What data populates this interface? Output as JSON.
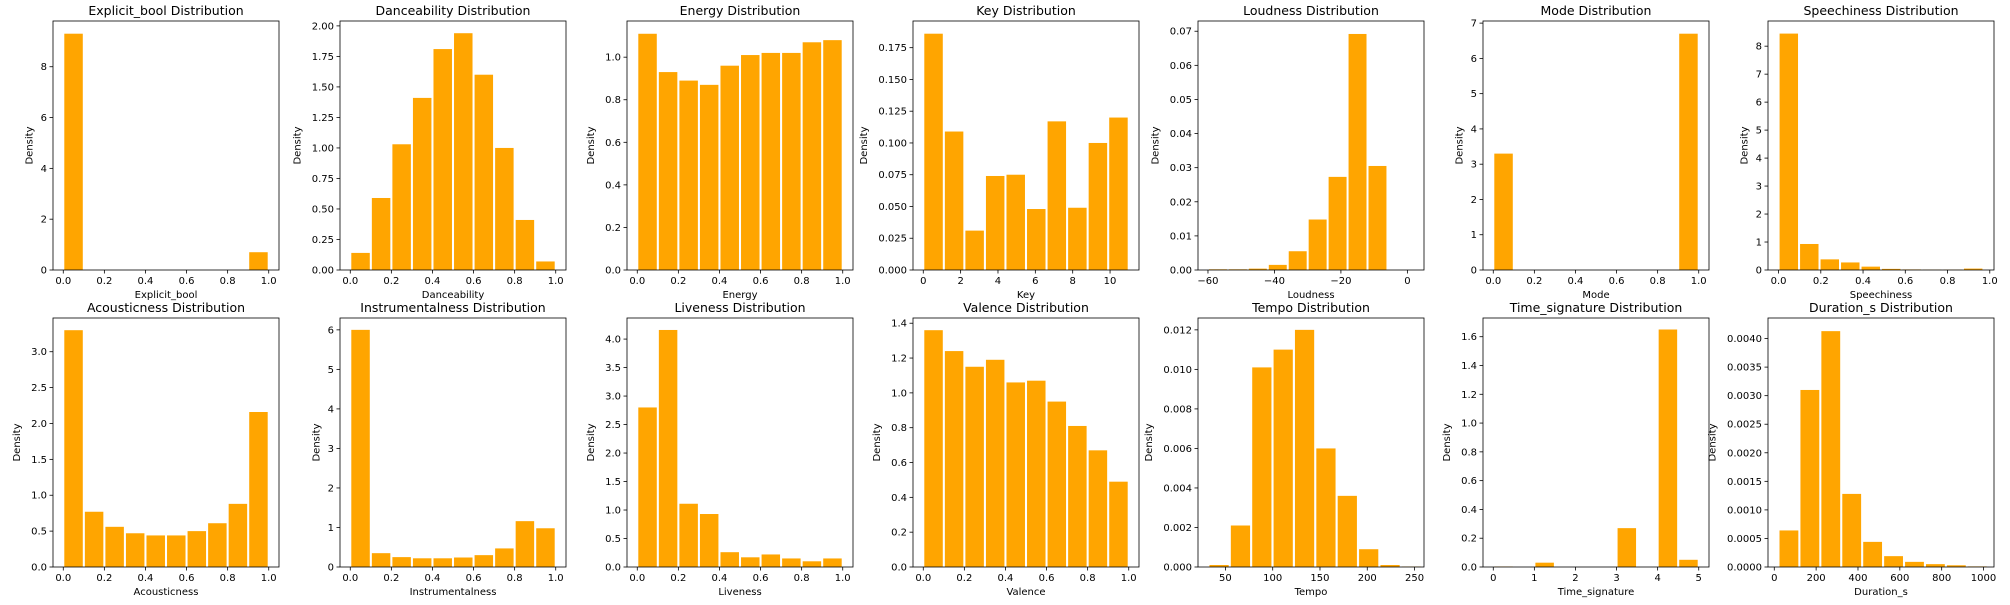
{
  "figure": {
    "bar_color": "#FFA500",
    "axis_color": "#000000",
    "background": "#ffffff",
    "ylabel": "Density"
  },
  "chart_data": [
    {
      "type": "bar",
      "title": "Explicit_bool Distribution",
      "xlabel": "Explicit_bool",
      "ylabel": "Density",
      "xlim": [
        -0.05,
        1.05
      ],
      "ylim": [
        0,
        9.8
      ],
      "xticks": [
        0,
        0.2,
        0.4,
        0.6,
        0.8,
        1.0
      ],
      "xticklabels": [
        "0.0",
        "0.2",
        "0.4",
        "0.6",
        "0.8",
        "1.0"
      ],
      "yticks": [
        0,
        2,
        4,
        6,
        8
      ],
      "yticklabels": [
        "0",
        "2",
        "4",
        "6",
        "8"
      ],
      "bins": [
        [
          0,
          0.1,
          9.3
        ],
        [
          0.9,
          1.0,
          0.7
        ]
      ]
    },
    {
      "type": "bar",
      "title": "Danceability Distribution",
      "xlabel": "Danceability",
      "ylabel": "Density",
      "xlim": [
        -0.05,
        1.05
      ],
      "ylim": [
        0,
        2.04
      ],
      "xticks": [
        0,
        0.2,
        0.4,
        0.6,
        0.8,
        1.0
      ],
      "xticklabels": [
        "0.0",
        "0.2",
        "0.4",
        "0.6",
        "0.8",
        "1.0"
      ],
      "yticks": [
        0,
        0.25,
        0.5,
        0.75,
        1.0,
        1.25,
        1.5,
        1.75,
        2.0
      ],
      "yticklabels": [
        "0.00",
        "0.25",
        "0.50",
        "0.75",
        "1.00",
        "1.25",
        "1.50",
        "1.75",
        "2.00"
      ],
      "bins": [
        [
          0.0,
          0.1,
          0.14
        ],
        [
          0.1,
          0.2,
          0.59
        ],
        [
          0.2,
          0.3,
          1.03
        ],
        [
          0.3,
          0.4,
          1.41
        ],
        [
          0.4,
          0.5,
          1.81
        ],
        [
          0.5,
          0.6,
          1.94
        ],
        [
          0.6,
          0.7,
          1.6
        ],
        [
          0.7,
          0.8,
          1.0
        ],
        [
          0.8,
          0.9,
          0.41
        ],
        [
          0.9,
          1.0,
          0.07
        ]
      ]
    },
    {
      "type": "bar",
      "title": "Energy Distribution",
      "xlabel": "Energy",
      "ylabel": "Density",
      "xlim": [
        -0.05,
        1.05
      ],
      "ylim": [
        0,
        1.17
      ],
      "xticks": [
        0,
        0.2,
        0.4,
        0.6,
        0.8,
        1.0
      ],
      "xticklabels": [
        "0.0",
        "0.2",
        "0.4",
        "0.6",
        "0.8",
        "1.0"
      ],
      "yticks": [
        0,
        0.2,
        0.4,
        0.6,
        0.8,
        1.0
      ],
      "yticklabels": [
        "0.0",
        "0.2",
        "0.4",
        "0.6",
        "0.8",
        "1.0"
      ],
      "bins": [
        [
          0.0,
          0.1,
          1.11
        ],
        [
          0.1,
          0.2,
          0.93
        ],
        [
          0.2,
          0.3,
          0.89
        ],
        [
          0.3,
          0.4,
          0.87
        ],
        [
          0.4,
          0.5,
          0.96
        ],
        [
          0.5,
          0.6,
          1.01
        ],
        [
          0.6,
          0.7,
          1.02
        ],
        [
          0.7,
          0.8,
          1.02
        ],
        [
          0.8,
          0.9,
          1.07
        ],
        [
          0.9,
          1.0,
          1.08
        ]
      ]
    },
    {
      "type": "bar",
      "title": "Key Distribution",
      "xlabel": "Key",
      "ylabel": "Density",
      "xlim": [
        -0.55,
        11.55
      ],
      "ylim": [
        0,
        0.196
      ],
      "xticks": [
        0,
        2,
        4,
        6,
        8,
        10
      ],
      "xticklabels": [
        "0",
        "2",
        "4",
        "6",
        "8",
        "10"
      ],
      "yticks": [
        0,
        0.025,
        0.05,
        0.075,
        0.1,
        0.125,
        0.15,
        0.175
      ],
      "yticklabels": [
        "0.000",
        "0.025",
        "0.050",
        "0.075",
        "0.100",
        "0.125",
        "0.150",
        "0.175"
      ],
      "bins": [
        [
          0,
          1.1,
          0.186
        ],
        [
          1.1,
          2.2,
          0.109
        ],
        [
          2.2,
          3.3,
          0.031
        ],
        [
          3.3,
          4.4,
          0.074
        ],
        [
          4.4,
          5.5,
          0.075
        ],
        [
          5.5,
          6.6,
          0.048
        ],
        [
          6.6,
          7.7,
          0.117
        ],
        [
          7.7,
          8.8,
          0.049
        ],
        [
          8.8,
          9.9,
          0.1
        ],
        [
          9.9,
          11.0,
          0.12
        ]
      ]
    },
    {
      "type": "bar",
      "title": "Loudness Distribution",
      "xlabel": "Loudness",
      "ylabel": "Density",
      "xlim": [
        -63,
        5
      ],
      "ylim": [
        0,
        0.073
      ],
      "xticks": [
        -60,
        -40,
        -20,
        0
      ],
      "xticklabels": [
        "−60",
        "−40",
        "−20",
        "0"
      ],
      "yticks": [
        0,
        0.01,
        0.02,
        0.03,
        0.04,
        0.05,
        0.06,
        0.07
      ],
      "yticklabels": [
        "0.00",
        "0.01",
        "0.02",
        "0.03",
        "0.04",
        "0.05",
        "0.06",
        "0.07"
      ],
      "bins": [
        [
          -60,
          -54,
          0.0002
        ],
        [
          -54,
          -48,
          0.0002
        ],
        [
          -48,
          -42,
          0.0004
        ],
        [
          -42,
          -36,
          0.0015
        ],
        [
          -36,
          -30,
          0.0055
        ],
        [
          -30,
          -24,
          0.0148
        ],
        [
          -24,
          -18,
          0.0273
        ],
        [
          -18,
          -12,
          0.0692
        ],
        [
          -12,
          -6,
          0.0305
        ]
      ]
    },
    {
      "type": "bar",
      "title": "Mode Distribution",
      "xlabel": "Mode",
      "ylabel": "Density",
      "xlim": [
        -0.05,
        1.05
      ],
      "ylim": [
        0,
        7.06
      ],
      "xticks": [
        0,
        0.2,
        0.4,
        0.6,
        0.8,
        1.0
      ],
      "xticklabels": [
        "0.0",
        "0.2",
        "0.4",
        "0.6",
        "0.8",
        "1.0"
      ],
      "yticks": [
        0,
        1,
        2,
        3,
        4,
        5,
        6,
        7
      ],
      "yticklabels": [
        "0",
        "1",
        "2",
        "3",
        "4",
        "5",
        "6",
        "7"
      ],
      "bins": [
        [
          0,
          0.1,
          3.3
        ],
        [
          0.9,
          1.0,
          6.7
        ]
      ]
    },
    {
      "type": "bar",
      "title": "Speechiness Distribution",
      "xlabel": "Speechiness",
      "ylabel": "Density",
      "xlim": [
        -0.05,
        1.02
      ],
      "ylim": [
        0,
        8.9
      ],
      "xticks": [
        0,
        0.2,
        0.4,
        0.6,
        0.8,
        1.0
      ],
      "xticklabels": [
        "0.0",
        "0.2",
        "0.4",
        "0.6",
        "0.8",
        "1.0"
      ],
      "yticks": [
        0,
        1,
        2,
        3,
        4,
        5,
        6,
        7,
        8
      ],
      "yticklabels": [
        "0",
        "1",
        "2",
        "3",
        "4",
        "5",
        "6",
        "7",
        "8"
      ],
      "bins": [
        [
          0,
          0.097,
          8.45
        ],
        [
          0.097,
          0.194,
          0.93
        ],
        [
          0.194,
          0.291,
          0.38
        ],
        [
          0.291,
          0.388,
          0.27
        ],
        [
          0.388,
          0.485,
          0.12
        ],
        [
          0.485,
          0.582,
          0.04
        ],
        [
          0.582,
          0.679,
          0.02
        ],
        [
          0.679,
          0.776,
          0.01
        ],
        [
          0.776,
          0.873,
          0.01
        ],
        [
          0.873,
          0.97,
          0.05
        ]
      ]
    },
    {
      "type": "bar",
      "title": "Acousticness Distribution",
      "xlabel": "Acousticness",
      "ylabel": "Density",
      "xlim": [
        -0.05,
        1.05
      ],
      "ylim": [
        0,
        3.47
      ],
      "xticks": [
        0,
        0.2,
        0.4,
        0.6,
        0.8,
        1.0
      ],
      "xticklabels": [
        "0.0",
        "0.2",
        "0.4",
        "0.6",
        "0.8",
        "1.0"
      ],
      "yticks": [
        0,
        0.5,
        1.0,
        1.5,
        2.0,
        2.5,
        3.0
      ],
      "yticklabels": [
        "0.0",
        "0.5",
        "1.0",
        "1.5",
        "2.0",
        "2.5",
        "3.0"
      ],
      "bins": [
        [
          0.0,
          0.1,
          3.3
        ],
        [
          0.1,
          0.2,
          0.77
        ],
        [
          0.2,
          0.3,
          0.56
        ],
        [
          0.3,
          0.4,
          0.47
        ],
        [
          0.4,
          0.5,
          0.44
        ],
        [
          0.5,
          0.6,
          0.44
        ],
        [
          0.6,
          0.7,
          0.5
        ],
        [
          0.7,
          0.8,
          0.61
        ],
        [
          0.8,
          0.9,
          0.88
        ],
        [
          0.9,
          1.0,
          2.16
        ]
      ]
    },
    {
      "type": "bar",
      "title": "Instrumentalness Distribution",
      "xlabel": "Instrumentalness",
      "ylabel": "Density",
      "xlim": [
        -0.05,
        1.05
      ],
      "ylim": [
        0,
        6.3
      ],
      "xticks": [
        0,
        0.2,
        0.4,
        0.6,
        0.8,
        1.0
      ],
      "xticklabels": [
        "0.0",
        "0.2",
        "0.4",
        "0.6",
        "0.8",
        "1.0"
      ],
      "yticks": [
        0,
        1,
        2,
        3,
        4,
        5,
        6
      ],
      "yticklabels": [
        "0",
        "1",
        "2",
        "3",
        "4",
        "5",
        "6"
      ],
      "bins": [
        [
          0.0,
          0.1,
          6.0
        ],
        [
          0.1,
          0.2,
          0.35
        ],
        [
          0.2,
          0.3,
          0.25
        ],
        [
          0.3,
          0.4,
          0.22
        ],
        [
          0.4,
          0.5,
          0.22
        ],
        [
          0.5,
          0.6,
          0.24
        ],
        [
          0.6,
          0.7,
          0.3
        ],
        [
          0.7,
          0.8,
          0.47
        ],
        [
          0.8,
          0.9,
          1.16
        ],
        [
          0.9,
          1.0,
          0.98
        ]
      ]
    },
    {
      "type": "bar",
      "title": "Liveness Distribution",
      "xlabel": "Liveness",
      "ylabel": "Density",
      "xlim": [
        -0.05,
        1.05
      ],
      "ylim": [
        0,
        4.37
      ],
      "xticks": [
        0,
        0.2,
        0.4,
        0.6,
        0.8,
        1.0
      ],
      "xticklabels": [
        "0.0",
        "0.2",
        "0.4",
        "0.6",
        "0.8",
        "1.0"
      ],
      "yticks": [
        0,
        0.5,
        1.0,
        1.5,
        2.0,
        2.5,
        3.0,
        3.5,
        4.0
      ],
      "yticklabels": [
        "0.0",
        "0.5",
        "1.0",
        "1.5",
        "2.0",
        "2.5",
        "3.0",
        "3.5",
        "4.0"
      ],
      "bins": [
        [
          0.0,
          0.1,
          2.8
        ],
        [
          0.1,
          0.2,
          4.16
        ],
        [
          0.2,
          0.3,
          1.11
        ],
        [
          0.3,
          0.4,
          0.93
        ],
        [
          0.4,
          0.5,
          0.26
        ],
        [
          0.5,
          0.6,
          0.17
        ],
        [
          0.6,
          0.7,
          0.22
        ],
        [
          0.7,
          0.8,
          0.15
        ],
        [
          0.8,
          0.9,
          0.1
        ],
        [
          0.9,
          1.0,
          0.15
        ]
      ]
    },
    {
      "type": "bar",
      "title": "Valence Distribution",
      "xlabel": "Valence",
      "ylabel": "Density",
      "xlim": [
        -0.05,
        1.05
      ],
      "ylim": [
        0,
        1.43
      ],
      "xticks": [
        0,
        0.2,
        0.4,
        0.6,
        0.8,
        1.0
      ],
      "xticklabels": [
        "0.0",
        "0.2",
        "0.4",
        "0.6",
        "0.8",
        "1.0"
      ],
      "yticks": [
        0,
        0.2,
        0.4,
        0.6,
        0.8,
        1.0,
        1.2,
        1.4
      ],
      "yticklabels": [
        "0.0",
        "0.2",
        "0.4",
        "0.6",
        "0.8",
        "1.0",
        "1.2",
        "1.4"
      ],
      "bins": [
        [
          0.0,
          0.1,
          1.36
        ],
        [
          0.1,
          0.2,
          1.24
        ],
        [
          0.2,
          0.3,
          1.15
        ],
        [
          0.3,
          0.4,
          1.19
        ],
        [
          0.4,
          0.5,
          1.06
        ],
        [
          0.5,
          0.6,
          1.07
        ],
        [
          0.6,
          0.7,
          0.95
        ],
        [
          0.7,
          0.8,
          0.81
        ],
        [
          0.8,
          0.9,
          0.67
        ],
        [
          0.9,
          1.0,
          0.49
        ]
      ]
    },
    {
      "type": "bar",
      "title": "Tempo Distribution",
      "xlabel": "Tempo",
      "ylabel": "Density",
      "xlim": [
        21,
        260
      ],
      "ylim": [
        0,
        0.0126
      ],
      "xticks": [
        50,
        100,
        150,
        200,
        250
      ],
      "xticklabels": [
        "50",
        "100",
        "150",
        "200",
        "250"
      ],
      "yticks": [
        0,
        0.002,
        0.004,
        0.006,
        0.008,
        0.01,
        0.012
      ],
      "yticklabels": [
        "0.000",
        "0.002",
        "0.004",
        "0.006",
        "0.008",
        "0.010",
        "0.012"
      ],
      "bins": [
        [
          32,
          54.6,
          0.0001
        ],
        [
          54.6,
          77.2,
          0.0021
        ],
        [
          77.2,
          99.8,
          0.0101
        ],
        [
          99.8,
          122.4,
          0.011
        ],
        [
          122.4,
          145,
          0.012
        ],
        [
          145,
          167.6,
          0.006
        ],
        [
          167.6,
          190.2,
          0.0036
        ],
        [
          190.2,
          212.8,
          0.0009
        ],
        [
          212.8,
          235.4,
          0.0001
        ],
        [
          235.4,
          258,
          2e-05
        ]
      ]
    },
    {
      "type": "bar",
      "title": "Time_signature Distribution",
      "xlabel": "Time_signature",
      "ylabel": "Density",
      "xlim": [
        -0.25,
        5.25
      ],
      "ylim": [
        0,
        1.73
      ],
      "xticks": [
        0,
        1,
        2,
        3,
        4,
        5
      ],
      "xticklabels": [
        "0",
        "1",
        "2",
        "3",
        "4",
        "5"
      ],
      "yticks": [
        0,
        0.2,
        0.4,
        0.6,
        0.8,
        1.0,
        1.2,
        1.4,
        1.6
      ],
      "yticklabels": [
        "0.0",
        "0.2",
        "0.4",
        "0.6",
        "0.8",
        "1.0",
        "1.2",
        "1.4",
        "1.6"
      ],
      "bins": [
        [
          0,
          0.5,
          0.003
        ],
        [
          1.0,
          1.5,
          0.03
        ],
        [
          3.0,
          3.5,
          0.27
        ],
        [
          4.0,
          4.5,
          1.65
        ],
        [
          4.5,
          5.0,
          0.05
        ]
      ]
    },
    {
      "type": "bar",
      "title": "Duration_s Distribution",
      "xlabel": "Duration_s",
      "ylabel": "Density",
      "xlim": [
        -30,
        1050
      ],
      "ylim": [
        0,
        0.00436
      ],
      "xticks": [
        0,
        200,
        400,
        600,
        800,
        1000
      ],
      "xticklabels": [
        "0",
        "200",
        "400",
        "600",
        "800",
        "1000"
      ],
      "yticks": [
        0,
        0.0005,
        0.001,
        0.0015,
        0.002,
        0.0025,
        0.003,
        0.0035,
        0.004
      ],
      "yticklabels": [
        "0.0000",
        "0.0005",
        "0.0010",
        "0.0015",
        "0.0020",
        "0.0025",
        "0.0030",
        "0.0035",
        "0.0040"
      ],
      "bins": [
        [
          20,
          120,
          0.00064
        ],
        [
          120,
          220,
          0.0031
        ],
        [
          220,
          320,
          0.00413
        ],
        [
          320,
          420,
          0.00128
        ],
        [
          420,
          520,
          0.00044
        ],
        [
          520,
          620,
          0.00019
        ],
        [
          620,
          720,
          9e-05
        ],
        [
          720,
          820,
          5e-05
        ],
        [
          820,
          920,
          3e-05
        ],
        [
          920,
          1020,
          1e-05
        ]
      ]
    }
  ]
}
